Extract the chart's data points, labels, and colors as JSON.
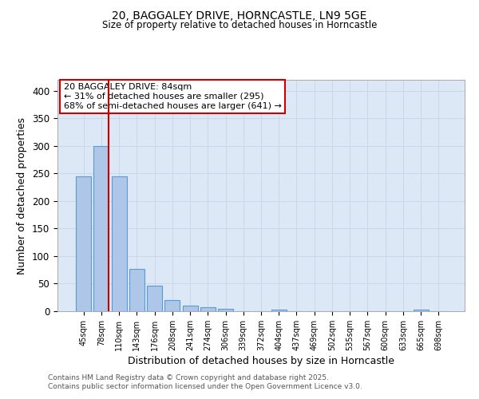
{
  "title1": "20, BAGGALEY DRIVE, HORNCASTLE, LN9 5GE",
  "title2": "Size of property relative to detached houses in Horncastle",
  "xlabel": "Distribution of detached houses by size in Horncastle",
  "ylabel": "Number of detached properties",
  "categories": [
    "45sqm",
    "78sqm",
    "110sqm",
    "143sqm",
    "176sqm",
    "208sqm",
    "241sqm",
    "274sqm",
    "306sqm",
    "339sqm",
    "372sqm",
    "404sqm",
    "437sqm",
    "469sqm",
    "502sqm",
    "535sqm",
    "567sqm",
    "600sqm",
    "633sqm",
    "665sqm",
    "698sqm"
  ],
  "values": [
    245,
    300,
    245,
    77,
    46,
    21,
    10,
    7,
    4,
    0,
    0,
    3,
    0,
    0,
    0,
    0,
    0,
    0,
    0,
    3,
    0
  ],
  "bar_color": "#aec6e8",
  "bar_edge_color": "#5b9bd5",
  "vline_color": "#cc0000",
  "annotation_text": "20 BAGGALEY DRIVE: 84sqm\n← 31% of detached houses are smaller (295)\n68% of semi-detached houses are larger (641) →",
  "annotation_box_color": "#ffffff",
  "annotation_box_edge": "#cc0000",
  "ylim": [
    0,
    420
  ],
  "yticks": [
    0,
    50,
    100,
    150,
    200,
    250,
    300,
    350,
    400
  ],
  "plot_bg_color": "#dce8f5",
  "fig_bg_color": "#ffffff",
  "footnote1": "Contains HM Land Registry data © Crown copyright and database right 2025.",
  "footnote2": "Contains public sector information licensed under the Open Government Licence v3.0."
}
